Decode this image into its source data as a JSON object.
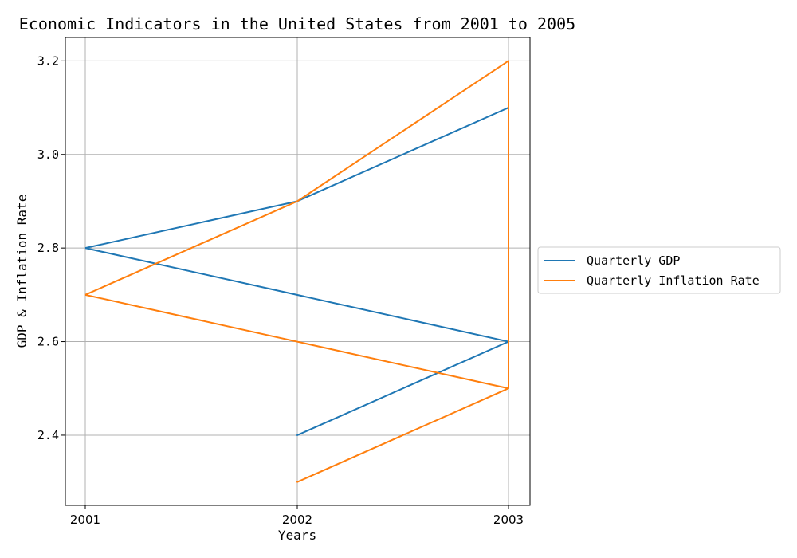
{
  "chart_data": {
    "type": "line",
    "title": "Economic Indicators in the United States from 2001 to 2005",
    "xlabel": "Years",
    "ylabel": "GDP & Inflation Rate",
    "categories": [
      "2001",
      "2002",
      "2003"
    ],
    "ylim": [
      2.25,
      3.25
    ],
    "yticks": [
      "2.4",
      "2.6",
      "2.8",
      "3.0",
      "3.2"
    ],
    "grid": true,
    "legend_position": "center-right outside",
    "series": [
      {
        "name": "Quarterly GDP",
        "color": "#1f77b4",
        "points": [
          {
            "x": "2001",
            "y": 2.8
          },
          {
            "x": "2002",
            "y": 2.9
          },
          {
            "x": "2003",
            "y": 3.1
          },
          {
            "x": "2003",
            "y": 2.6
          },
          {
            "x": "2002",
            "y": 2.4
          },
          {
            "x": "2003",
            "y": 2.6
          },
          {
            "x": "2001",
            "y": 2.8
          }
        ]
      },
      {
        "name": "Quarterly Inflation Rate",
        "color": "#ff7f0e",
        "points": [
          {
            "x": "2001",
            "y": 2.7
          },
          {
            "x": "2002",
            "y": 2.9
          },
          {
            "x": "2003",
            "y": 3.2
          },
          {
            "x": "2003",
            "y": 2.5
          },
          {
            "x": "2002",
            "y": 2.3
          },
          {
            "x": "2003",
            "y": 2.5
          },
          {
            "x": "2001",
            "y": 2.7
          }
        ]
      }
    ]
  }
}
